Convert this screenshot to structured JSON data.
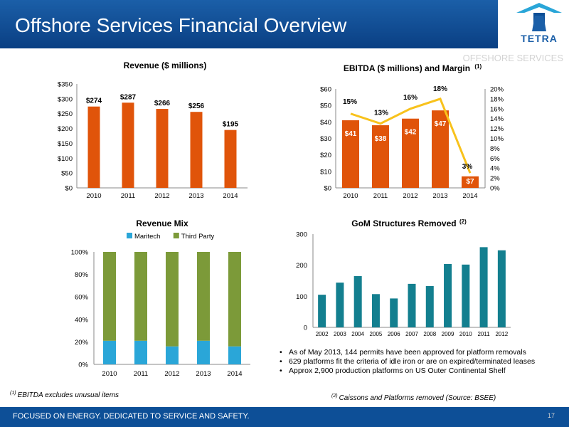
{
  "header": {
    "title": "Offshore Services Financial Overview",
    "section_label": "OFFSHORE SERVICES"
  },
  "logo": {
    "text": "TETRA"
  },
  "colors": {
    "orange": "#e0540a",
    "yellow": "#f8c21c",
    "blue": "#2aa6d8",
    "green": "#7c9a39",
    "teal": "#137f8f",
    "navy": "#0d4f97"
  },
  "chart_data": [
    {
      "type": "bar",
      "title": "Revenue ($ millions)",
      "categories": [
        "2010",
        "2011",
        "2012",
        "2013",
        "2014"
      ],
      "values": [
        274,
        287,
        266,
        256,
        195
      ],
      "data_labels": [
        "$274",
        "$287",
        "$266",
        "$256",
        "$195"
      ],
      "ylim": [
        0,
        350
      ],
      "yticks": [
        "$0",
        "$50",
        "$100",
        "$150",
        "$200",
        "$250",
        "$300",
        "$350"
      ],
      "grid": false
    },
    {
      "type": "bar",
      "title": "EBITDA ($ millions) and Margin",
      "title_note": "(1)",
      "categories": [
        "2010",
        "2011",
        "2012",
        "2013",
        "2014"
      ],
      "values": [
        41,
        38,
        42,
        47,
        7
      ],
      "data_labels": [
        "$41",
        "$38",
        "$42",
        "$47",
        "$7"
      ],
      "ylim": [
        0,
        60
      ],
      "yticks": [
        "$0",
        "$10",
        "$20",
        "$30",
        "$40",
        "$50",
        "$60"
      ],
      "line_values": [
        15,
        13,
        16,
        18,
        3
      ],
      "line_labels": [
        "15%",
        "13%",
        "16%",
        "18%",
        "3%"
      ],
      "y2lim": [
        0,
        20
      ],
      "y2ticks": [
        "0%",
        "2%",
        "4%",
        "6%",
        "8%",
        "10%",
        "12%",
        "14%",
        "16%",
        "18%",
        "20%"
      ],
      "grid": false
    },
    {
      "type": "bar",
      "stacked": true,
      "title": "Revenue Mix",
      "categories": [
        "2010",
        "2011",
        "2012",
        "2013",
        "2014"
      ],
      "series": [
        {
          "name": "Maritech",
          "values": [
            21,
            21,
            16,
            21,
            16
          ]
        },
        {
          "name": "Third Party",
          "values": [
            79,
            79,
            84,
            79,
            84
          ]
        }
      ],
      "ylim": [
        0,
        100
      ],
      "yticks": [
        "0%",
        "20%",
        "40%",
        "60%",
        "80%",
        "100%"
      ],
      "legend": "top",
      "grid": false
    },
    {
      "type": "bar",
      "title": "GoM Structures Removed",
      "title_note": "(2)",
      "categories": [
        "2002",
        "2003",
        "2004",
        "2005",
        "2006",
        "2007",
        "2008",
        "2009",
        "2010",
        "2011",
        "2012"
      ],
      "values": [
        105,
        144,
        165,
        107,
        93,
        140,
        133,
        204,
        202,
        258,
        248
      ],
      "ylim": [
        0,
        300
      ],
      "yticks": [
        "0",
        "100",
        "200",
        "300"
      ],
      "grid": false
    }
  ],
  "notes": [
    "As of May 2013, 144 permits have been approved for platform removals",
    "629 platforms fit the criteria of idle iron or are on expired/terminated leases",
    "Approx 2,900 production platforms on US Outer Continental Shelf"
  ],
  "footnotes": {
    "ebitda_mark": "(1)",
    "ebitda": "EBITDA excludes  unusual items",
    "caissons_mark": "(2)",
    "caissons": "Caissons and Platforms removed (Source: BSEE)"
  },
  "footer": {
    "tagline": "FOCUSED ON ENERGY. DEDICATED TO SERVICE AND SAFETY.",
    "page_number": "17"
  }
}
